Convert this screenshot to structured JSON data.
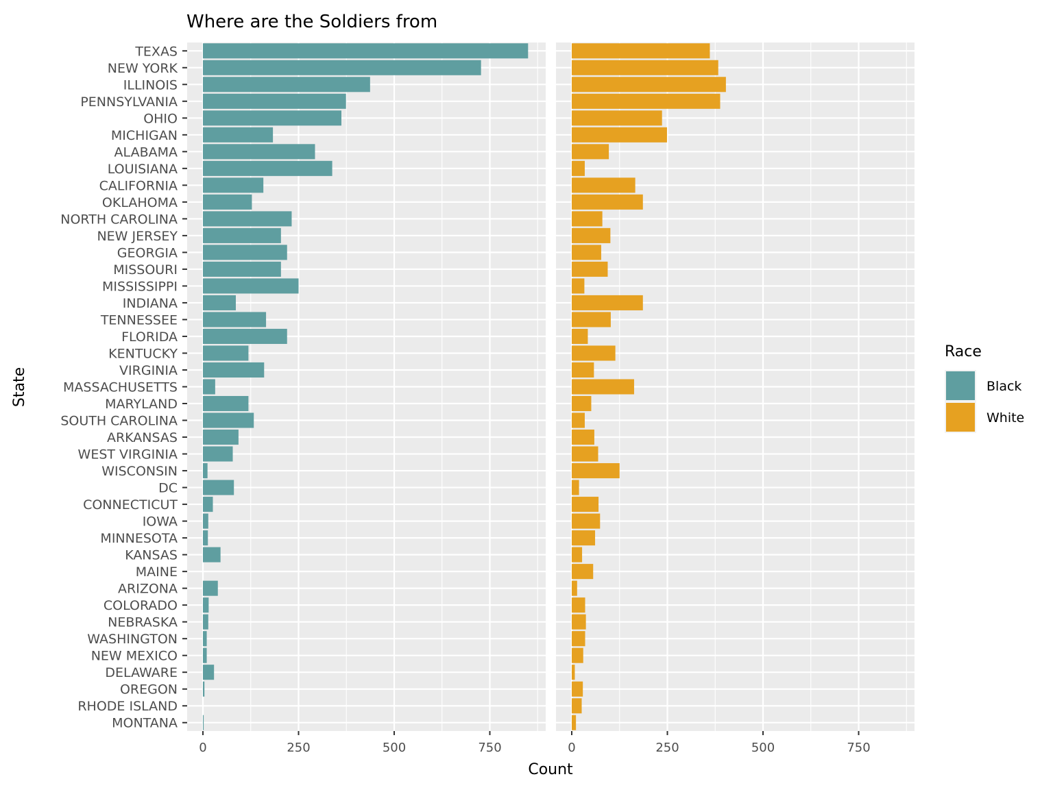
{
  "chart_data": {
    "type": "bar",
    "orientation": "horizontal",
    "faceted": true,
    "title": "Where are the Soldiers from",
    "xlabel": "Count",
    "ylabel": "State",
    "xlim": [
      -40,
      895
    ],
    "x_ticks": [
      0,
      250,
      500,
      750
    ],
    "x_tick_labels": [
      "0",
      "250",
      "500",
      "750"
    ],
    "grid": true,
    "legend": {
      "title": "Race",
      "position": "right"
    },
    "categories": [
      "TEXAS",
      "NEW YORK",
      "ILLINOIS",
      "PENNSYLVANIA",
      "OHIO",
      "MICHIGAN",
      "ALABAMA",
      "LOUISIANA",
      "CALIFORNIA",
      "OKLAHOMA",
      "NORTH CAROLINA",
      "NEW JERSEY",
      "GEORGIA",
      "MISSOURI",
      "MISSISSIPPI",
      "INDIANA",
      "TENNESSEE",
      "FLORIDA",
      "KENTUCKY",
      "VIRGINIA",
      "MASSACHUSETTS",
      "MARYLAND",
      "SOUTH CAROLINA",
      "ARKANSAS",
      "WEST VIRGINIA",
      "WISCONSIN",
      "DC",
      "CONNECTICUT",
      "IOWA",
      "MINNESOTA",
      "KANSAS",
      "MAINE",
      "ARIZONA",
      "COLORADO",
      "NEBRASKA",
      "WASHINGTON",
      "NEW MEXICO",
      "DELAWARE",
      "OREGON",
      "RHODE ISLAND",
      "MONTANA"
    ],
    "series": [
      {
        "name": "Black",
        "color": "#5f9ea0",
        "values": [
          850,
          727,
          437,
          374,
          362,
          183,
          293,
          338,
          158,
          128,
          232,
          204,
          220,
          204,
          250,
          86,
          165,
          220,
          119,
          160,
          32,
          119,
          133,
          93,
          78,
          12,
          81,
          26,
          14,
          13,
          46,
          0,
          39,
          15,
          14,
          10,
          10,
          29,
          4,
          0,
          2
        ]
      },
      {
        "name": "White",
        "color": "#e6a121",
        "values": [
          361,
          383,
          403,
          388,
          236,
          249,
          97,
          34,
          166,
          186,
          80,
          101,
          77,
          94,
          33,
          186,
          102,
          42,
          114,
          58,
          163,
          51,
          34,
          59,
          69,
          125,
          19,
          70,
          74,
          61,
          27,
          56,
          14,
          35,
          37,
          35,
          30,
          8,
          29,
          26,
          11
        ]
      }
    ]
  }
}
